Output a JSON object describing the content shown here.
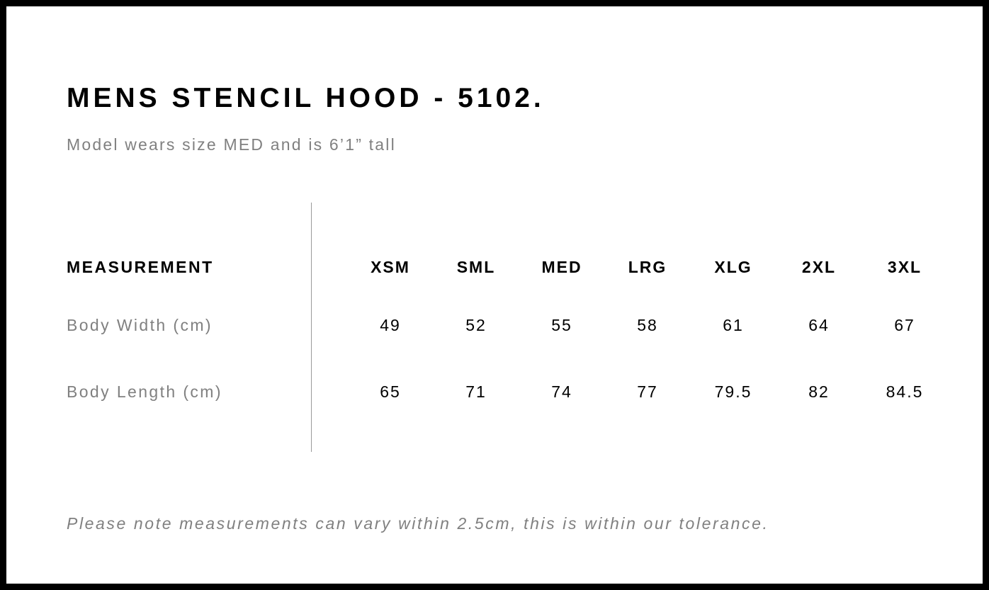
{
  "title": "MENS STENCIL HOOD - 5102.",
  "subtitle": "Model wears size MED and is 6’1” tall",
  "table": {
    "header_label": "MEASUREMENT",
    "sizes": [
      "XSM",
      "SML",
      "MED",
      "LRG",
      "XLG",
      "2XL",
      "3XL"
    ],
    "rows": [
      {
        "label": "Body Width (cm)",
        "values": [
          "49",
          "52",
          "55",
          "58",
          "61",
          "64",
          "67"
        ]
      },
      {
        "label": "Body Length (cm)",
        "values": [
          "65",
          "71",
          "74",
          "77",
          "79.5",
          "82",
          "84.5"
        ]
      }
    ]
  },
  "note": "Please note measurements can vary within 2.5cm, this is within our tolerance."
}
